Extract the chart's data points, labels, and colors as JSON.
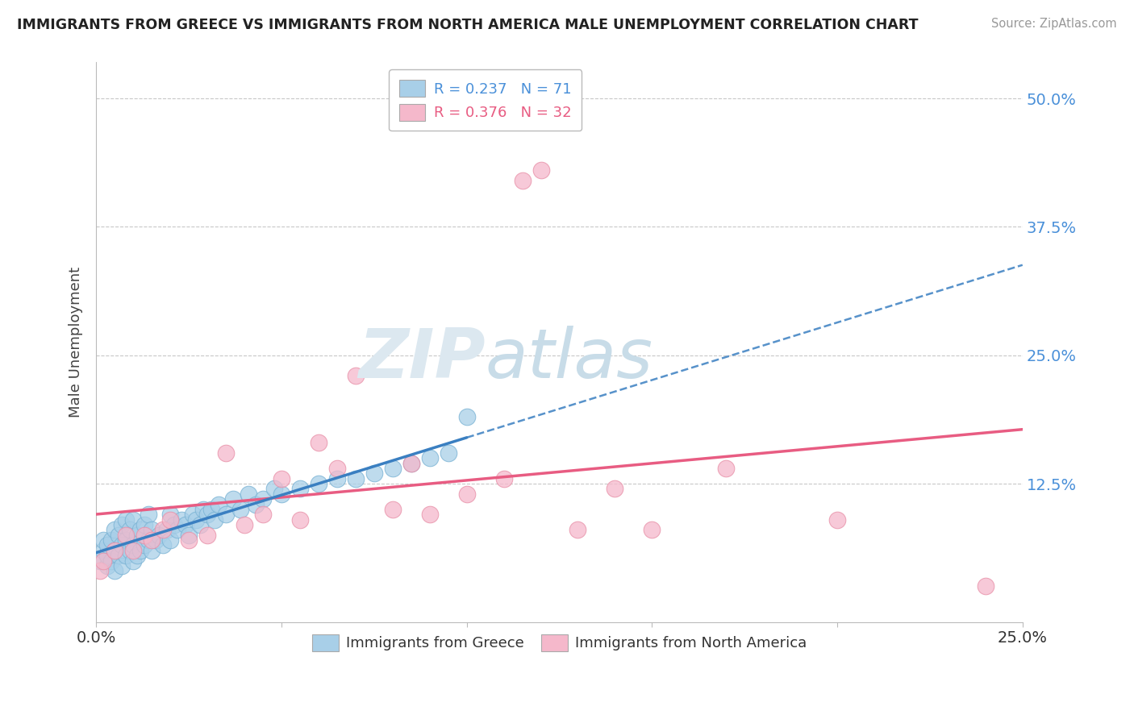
{
  "title": "IMMIGRANTS FROM GREECE VS IMMIGRANTS FROM NORTH AMERICA MALE UNEMPLOYMENT CORRELATION CHART",
  "source": "Source: ZipAtlas.com",
  "ylabel": "Male Unemployment",
  "ytick_values": [
    0.0,
    0.125,
    0.25,
    0.375,
    0.5
  ],
  "ytick_labels": [
    "",
    "12.5%",
    "25.0%",
    "37.5%",
    "50.0%"
  ],
  "xlim": [
    0.0,
    0.25
  ],
  "ylim": [
    -0.01,
    0.535
  ],
  "legend1_label": "R = 0.237   N = 71",
  "legend2_label": "R = 0.376   N = 32",
  "greece_color": "#a8cfe8",
  "greece_edge_color": "#7ab3d4",
  "greece_line_color": "#3a7fc1",
  "north_america_color": "#f5b8cb",
  "north_america_edge_color": "#e890a8",
  "north_america_line_color": "#e85c82",
  "background_color": "#ffffff",
  "grid_color": "#c8c8c8",
  "watermark_zip_color": "#dce8f0",
  "watermark_atlas_color": "#c8dce8",
  "greece_R": 0.237,
  "greece_N": 71,
  "north_america_R": 0.376,
  "north_america_N": 32,
  "greece_x": [
    0.001,
    0.002,
    0.002,
    0.003,
    0.003,
    0.003,
    0.004,
    0.004,
    0.005,
    0.005,
    0.005,
    0.006,
    0.006,
    0.007,
    0.007,
    0.007,
    0.008,
    0.008,
    0.008,
    0.009,
    0.009,
    0.01,
    0.01,
    0.01,
    0.011,
    0.011,
    0.012,
    0.012,
    0.013,
    0.013,
    0.014,
    0.014,
    0.015,
    0.015,
    0.016,
    0.017,
    0.018,
    0.019,
    0.02,
    0.02,
    0.021,
    0.022,
    0.023,
    0.024,
    0.025,
    0.026,
    0.027,
    0.028,
    0.029,
    0.03,
    0.031,
    0.032,
    0.033,
    0.035,
    0.037,
    0.039,
    0.041,
    0.043,
    0.045,
    0.048,
    0.05,
    0.055,
    0.06,
    0.065,
    0.07,
    0.075,
    0.08,
    0.085,
    0.09,
    0.095,
    0.1
  ],
  "greece_y": [
    0.05,
    0.06,
    0.07,
    0.045,
    0.055,
    0.065,
    0.05,
    0.07,
    0.04,
    0.06,
    0.08,
    0.055,
    0.075,
    0.045,
    0.065,
    0.085,
    0.055,
    0.07,
    0.09,
    0.06,
    0.08,
    0.05,
    0.065,
    0.09,
    0.055,
    0.075,
    0.06,
    0.08,
    0.065,
    0.085,
    0.07,
    0.095,
    0.06,
    0.08,
    0.07,
    0.075,
    0.065,
    0.08,
    0.07,
    0.095,
    0.085,
    0.08,
    0.09,
    0.085,
    0.075,
    0.095,
    0.09,
    0.085,
    0.1,
    0.095,
    0.1,
    0.09,
    0.105,
    0.095,
    0.11,
    0.1,
    0.115,
    0.105,
    0.11,
    0.12,
    0.115,
    0.12,
    0.125,
    0.13,
    0.13,
    0.135,
    0.14,
    0.145,
    0.15,
    0.155,
    0.19
  ],
  "north_america_x": [
    0.001,
    0.002,
    0.005,
    0.008,
    0.01,
    0.013,
    0.015,
    0.018,
    0.02,
    0.025,
    0.03,
    0.035,
    0.04,
    0.045,
    0.05,
    0.055,
    0.06,
    0.065,
    0.07,
    0.08,
    0.085,
    0.09,
    0.1,
    0.11,
    0.115,
    0.12,
    0.13,
    0.14,
    0.15,
    0.17,
    0.2,
    0.24
  ],
  "north_america_y": [
    0.04,
    0.05,
    0.06,
    0.075,
    0.06,
    0.075,
    0.07,
    0.08,
    0.09,
    0.07,
    0.075,
    0.155,
    0.085,
    0.095,
    0.13,
    0.09,
    0.165,
    0.14,
    0.23,
    0.1,
    0.145,
    0.095,
    0.115,
    0.13,
    0.42,
    0.43,
    0.08,
    0.12,
    0.08,
    0.14,
    0.09,
    0.025
  ],
  "trend_x_start": 0.0,
  "trend_x_end": 0.25
}
